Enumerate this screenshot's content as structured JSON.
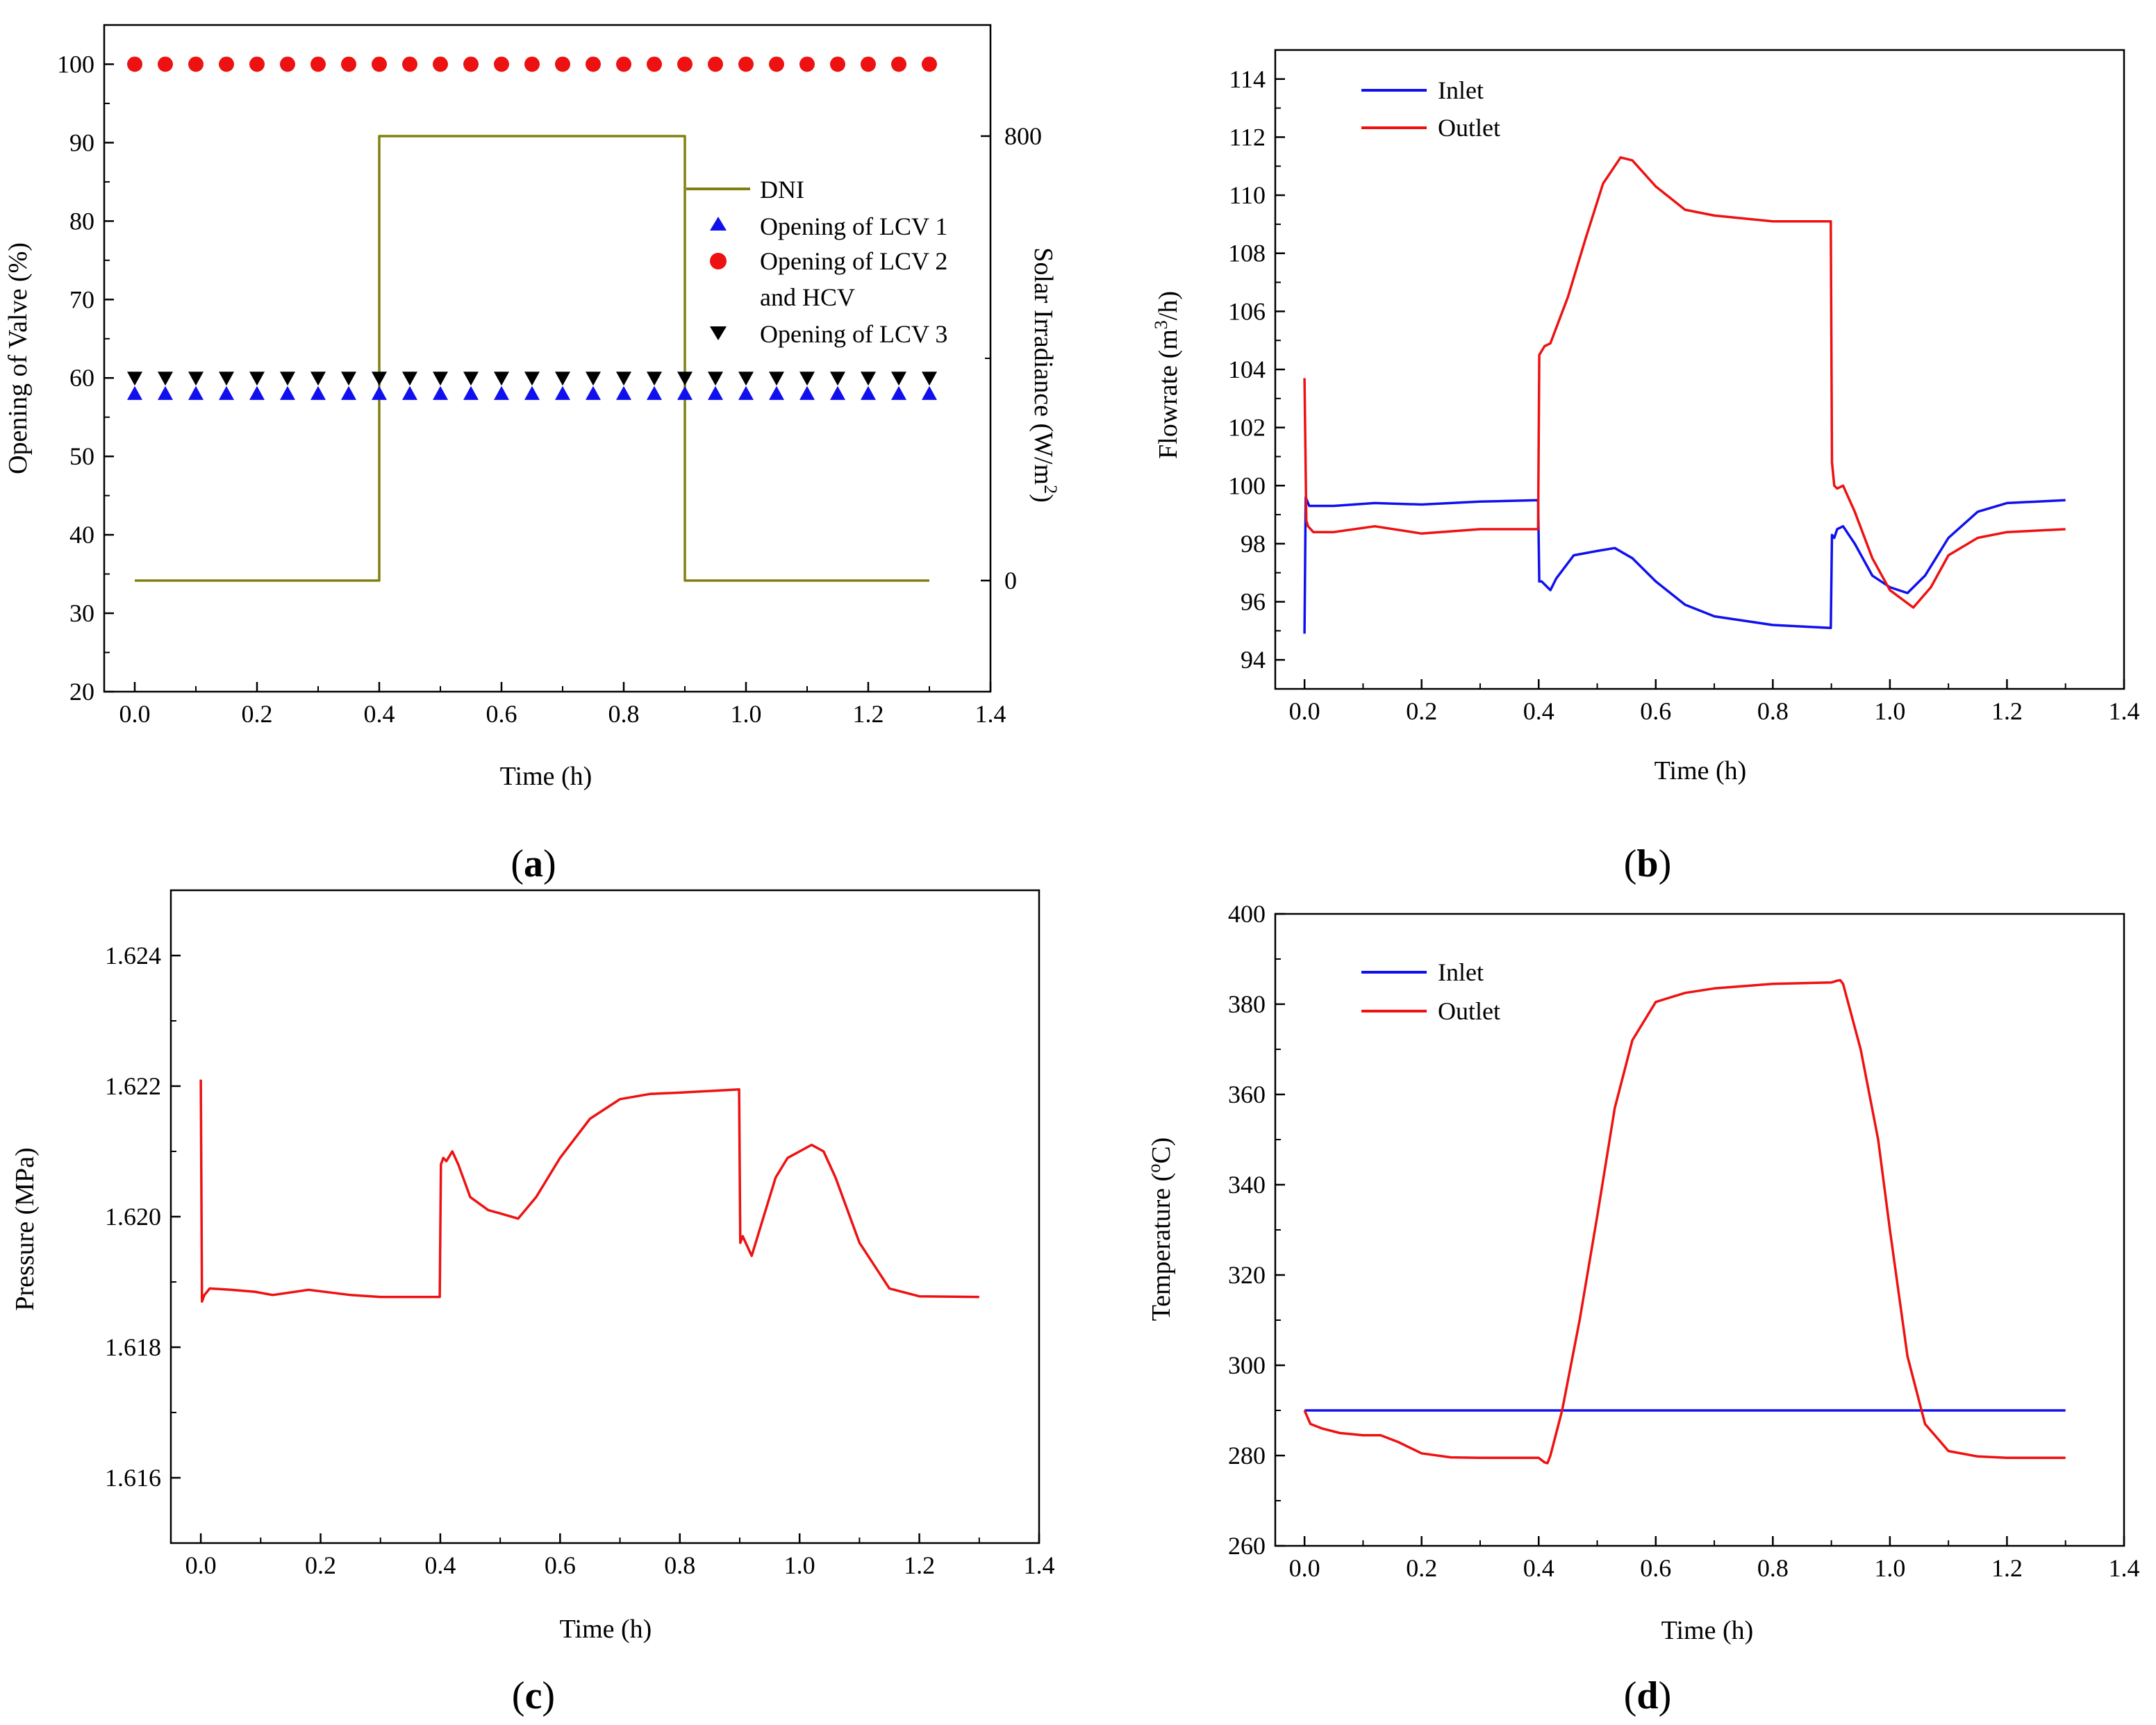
{
  "colors": {
    "blue": "#1010ee",
    "red": "#ee1111",
    "olive": "#808010",
    "black": "#000000"
  },
  "chart_data": [
    {
      "id": "a",
      "type": "line",
      "panel_label": "a",
      "xlabel": "Time (h)",
      "ylabel": "Opening of Valve (%)",
      "y2label": "Solar Irradiance (W/m",
      "y2label_sup": "2",
      "y2label_end": ")",
      "xlim": [
        -0.05,
        1.4
      ],
      "ylim": [
        20,
        105
      ],
      "y2lim": [
        -200,
        1000
      ],
      "xticks": [
        0.0,
        0.2,
        0.4,
        0.6,
        0.8,
        1.0,
        1.2,
        1.4
      ],
      "xtick_labels": [
        "0.0",
        "0.2",
        "0.4",
        "0.6",
        "0.8",
        "1.0",
        "1.2",
        "1.4"
      ],
      "yticks": [
        20,
        30,
        40,
        50,
        60,
        70,
        80,
        90,
        100
      ],
      "ytick_labels": [
        "20",
        "30",
        "40",
        "50",
        "60",
        "70",
        "80",
        "90",
        "100"
      ],
      "y2ticks": [
        0,
        800
      ],
      "y2tick_labels": [
        "0",
        "800"
      ],
      "legend": {
        "position": "right-middle",
        "entries": [
          "DNI",
          "Opening of LCV 1",
          "Opening of LCV 2",
          "and HCV",
          "Opening of LCV 3"
        ]
      },
      "series": [
        {
          "name": "DNI",
          "axis": "y2",
          "style": "line",
          "color": "#808010",
          "x": [
            0.0,
            0.4,
            0.4,
            0.9,
            0.9,
            1.3
          ],
          "y": [
            0,
            0,
            800,
            800,
            0,
            0
          ]
        },
        {
          "name": "Opening of LCV 1",
          "axis": "y",
          "style": "marker",
          "marker": "triangle-up",
          "color": "#1010ee",
          "x": [
            0,
            0.05,
            0.1,
            0.15,
            0.2,
            0.25,
            0.3,
            0.35,
            0.4,
            0.45,
            0.5,
            0.55,
            0.6,
            0.65,
            0.7,
            0.75,
            0.8,
            0.85,
            0.9,
            0.95,
            1.0,
            1.05,
            1.1,
            1.15,
            1.2,
            1.25,
            1.3
          ],
          "y": [
            58,
            58,
            58,
            58,
            58,
            58,
            58,
            58,
            58,
            58,
            58,
            58,
            58,
            58,
            58,
            58,
            58,
            58,
            58,
            58,
            58,
            58,
            58,
            58,
            58,
            58,
            58
          ]
        },
        {
          "name": "Opening of LCV 2 and HCV",
          "axis": "y",
          "style": "marker",
          "marker": "circle",
          "color": "#ee1111",
          "x": [
            0,
            0.05,
            0.1,
            0.15,
            0.2,
            0.25,
            0.3,
            0.35,
            0.4,
            0.45,
            0.5,
            0.55,
            0.6,
            0.65,
            0.7,
            0.75,
            0.8,
            0.85,
            0.9,
            0.95,
            1.0,
            1.05,
            1.1,
            1.15,
            1.2,
            1.25,
            1.3
          ],
          "y": [
            100,
            100,
            100,
            100,
            100,
            100,
            100,
            100,
            100,
            100,
            100,
            100,
            100,
            100,
            100,
            100,
            100,
            100,
            100,
            100,
            100,
            100,
            100,
            100,
            100,
            100,
            100
          ]
        },
        {
          "name": "Opening of LCV 3",
          "axis": "y",
          "style": "marker",
          "marker": "triangle-down",
          "color": "#000000",
          "x": [
            0,
            0.05,
            0.1,
            0.15,
            0.2,
            0.25,
            0.3,
            0.35,
            0.4,
            0.45,
            0.5,
            0.55,
            0.6,
            0.65,
            0.7,
            0.75,
            0.8,
            0.85,
            0.9,
            0.95,
            1.0,
            1.05,
            1.1,
            1.15,
            1.2,
            1.25,
            1.3
          ],
          "y": [
            60,
            60,
            60,
            60,
            60,
            60,
            60,
            60,
            60,
            60,
            60,
            60,
            60,
            60,
            60,
            60,
            60,
            60,
            60,
            60,
            60,
            60,
            60,
            60,
            60,
            60,
            60
          ]
        }
      ]
    },
    {
      "id": "b",
      "type": "line",
      "panel_label": "b",
      "xlabel": "Time (h)",
      "ylabel": "Flowrate (m",
      "ylabel_sup": "3",
      "ylabel_end": "/h)",
      "xlim": [
        -0.05,
        1.4
      ],
      "ylim": [
        93,
        115
      ],
      "xticks": [
        0.0,
        0.2,
        0.4,
        0.6,
        0.8,
        1.0,
        1.2,
        1.4
      ],
      "xtick_labels": [
        "0.0",
        "0.2",
        "0.4",
        "0.6",
        "0.8",
        "1.0",
        "1.2",
        "1.4"
      ],
      "yticks": [
        94,
        96,
        98,
        100,
        102,
        104,
        106,
        108,
        110,
        112,
        114
      ],
      "ytick_labels": [
        "94",
        "96",
        "98",
        "100",
        "102",
        "104",
        "106",
        "108",
        "110",
        "112",
        "114"
      ],
      "legend": {
        "position": "top-left",
        "entries": [
          "Inlet",
          "Outlet"
        ]
      },
      "series": [
        {
          "name": "Inlet",
          "color": "#1010ee",
          "x": [
            0.0,
            0.002,
            0.004,
            0.008,
            0.015,
            0.05,
            0.12,
            0.2,
            0.3,
            0.399,
            0.401,
            0.405,
            0.42,
            0.43,
            0.46,
            0.5,
            0.53,
            0.56,
            0.6,
            0.65,
            0.7,
            0.8,
            0.899,
            0.901,
            0.905,
            0.91,
            0.92,
            0.94,
            0.97,
            1.0,
            1.03,
            1.06,
            1.1,
            1.15,
            1.2,
            1.3
          ],
          "y": [
            94.9,
            99.6,
            99.5,
            99.3,
            99.3,
            99.3,
            99.4,
            99.35,
            99.45,
            99.5,
            96.7,
            96.7,
            96.4,
            96.8,
            97.6,
            97.75,
            97.85,
            97.5,
            96.7,
            95.9,
            95.5,
            95.2,
            95.1,
            98.3,
            98.2,
            98.5,
            98.6,
            98.0,
            96.9,
            96.5,
            96.3,
            96.9,
            98.2,
            99.1,
            99.4,
            99.5
          ]
        },
        {
          "name": "Outlet",
          "color": "#ee1111",
          "x": [
            0.0,
            0.003,
            0.006,
            0.015,
            0.05,
            0.12,
            0.2,
            0.3,
            0.399,
            0.401,
            0.41,
            0.42,
            0.45,
            0.48,
            0.51,
            0.54,
            0.56,
            0.6,
            0.65,
            0.7,
            0.8,
            0.899,
            0.901,
            0.905,
            0.91,
            0.92,
            0.94,
            0.97,
            1.0,
            1.04,
            1.07,
            1.1,
            1.15,
            1.2,
            1.3
          ],
          "y": [
            103.7,
            98.8,
            98.6,
            98.4,
            98.4,
            98.6,
            98.35,
            98.5,
            98.5,
            104.5,
            104.8,
            104.9,
            106.5,
            108.5,
            110.4,
            111.3,
            111.2,
            110.3,
            109.5,
            109.3,
            109.1,
            109.1,
            100.8,
            100.0,
            99.9,
            100.0,
            99.1,
            97.5,
            96.4,
            95.8,
            96.5,
            97.6,
            98.2,
            98.4,
            98.5
          ]
        }
      ]
    },
    {
      "id": "c",
      "type": "line",
      "panel_label": "c",
      "xlabel": "Time (h)",
      "ylabel": "Pressure (MPa)",
      "xlim": [
        -0.05,
        1.4
      ],
      "ylim": [
        1.615,
        1.625
      ],
      "xticks": [
        0.0,
        0.2,
        0.4,
        0.6,
        0.8,
        1.0,
        1.2,
        1.4
      ],
      "xtick_labels": [
        "0.0",
        "0.2",
        "0.4",
        "0.6",
        "0.8",
        "1.0",
        "1.2",
        "1.4"
      ],
      "yticks": [
        1.616,
        1.618,
        1.62,
        1.622,
        1.624
      ],
      "ytick_labels": [
        "1.616",
        "1.618",
        "1.620",
        "1.622",
        "1.624"
      ],
      "series": [
        {
          "name": "Pressure",
          "color": "#ee1111",
          "x": [
            0.0,
            0.002,
            0.006,
            0.015,
            0.05,
            0.09,
            0.12,
            0.18,
            0.25,
            0.3,
            0.399,
            0.401,
            0.405,
            0.41,
            0.42,
            0.43,
            0.45,
            0.48,
            0.5,
            0.53,
            0.56,
            0.6,
            0.65,
            0.7,
            0.75,
            0.8,
            0.899,
            0.901,
            0.905,
            0.91,
            0.92,
            0.94,
            0.96,
            0.98,
            1.0,
            1.02,
            1.04,
            1.06,
            1.1,
            1.15,
            1.2,
            1.3
          ],
          "y": [
            1.6221,
            1.6187,
            1.6188,
            1.6189,
            1.61888,
            1.61885,
            1.6188,
            1.61888,
            1.6188,
            1.61877,
            1.61877,
            1.6208,
            1.6209,
            1.62085,
            1.621,
            1.6208,
            1.6203,
            1.6201,
            1.62005,
            1.61997,
            1.6203,
            1.6209,
            1.6215,
            1.6218,
            1.62188,
            1.6219,
            1.62195,
            1.6196,
            1.6197,
            1.6196,
            1.6194,
            1.62,
            1.6206,
            1.6209,
            1.621,
            1.6211,
            1.621,
            1.6206,
            1.6196,
            1.6189,
            1.61878,
            1.61877
          ]
        }
      ]
    },
    {
      "id": "d",
      "type": "line",
      "panel_label": "d",
      "xlabel": "Time (h)",
      "ylabel": "Temperature (",
      "ylabel_sup": "o",
      "ylabel_end": "C)",
      "xlim": [
        -0.05,
        1.4
      ],
      "ylim": [
        260,
        400
      ],
      "xticks": [
        0.0,
        0.2,
        0.4,
        0.6,
        0.8,
        1.0,
        1.2,
        1.4
      ],
      "xtick_labels": [
        "0.0",
        "0.2",
        "0.4",
        "0.6",
        "0.8",
        "1.0",
        "1.2",
        "1.4"
      ],
      "yticks": [
        260,
        280,
        300,
        320,
        340,
        360,
        380,
        400
      ],
      "ytick_labels": [
        "260",
        "280",
        "300",
        "320",
        "340",
        "360",
        "380",
        "400"
      ],
      "legend": {
        "position": "top-left",
        "entries": [
          "Inlet",
          "Outlet"
        ]
      },
      "series": [
        {
          "name": "Inlet",
          "color": "#1010ee",
          "x": [
            0.0,
            1.3
          ],
          "y": [
            290,
            290
          ]
        },
        {
          "name": "Outlet",
          "color": "#ee1111",
          "x": [
            0.0,
            0.01,
            0.03,
            0.06,
            0.1,
            0.13,
            0.16,
            0.2,
            0.25,
            0.3,
            0.35,
            0.4,
            0.41,
            0.415,
            0.42,
            0.44,
            0.47,
            0.5,
            0.53,
            0.56,
            0.6,
            0.65,
            0.7,
            0.8,
            0.9,
            0.91,
            0.915,
            0.92,
            0.95,
            0.98,
            1.0,
            1.03,
            1.06,
            1.1,
            1.15,
            1.2,
            1.3
          ],
          "y": [
            290,
            287,
            286,
            285,
            284.5,
            284.5,
            283,
            280.5,
            279.6,
            279.5,
            279.5,
            279.5,
            278.5,
            278.3,
            280,
            290,
            310,
            333,
            357,
            372,
            380.5,
            382.5,
            383.5,
            384.5,
            384.8,
            385.2,
            385.3,
            384.5,
            370,
            350,
            330,
            302,
            287,
            281,
            279.8,
            279.5,
            279.5
          ]
        }
      ]
    }
  ]
}
